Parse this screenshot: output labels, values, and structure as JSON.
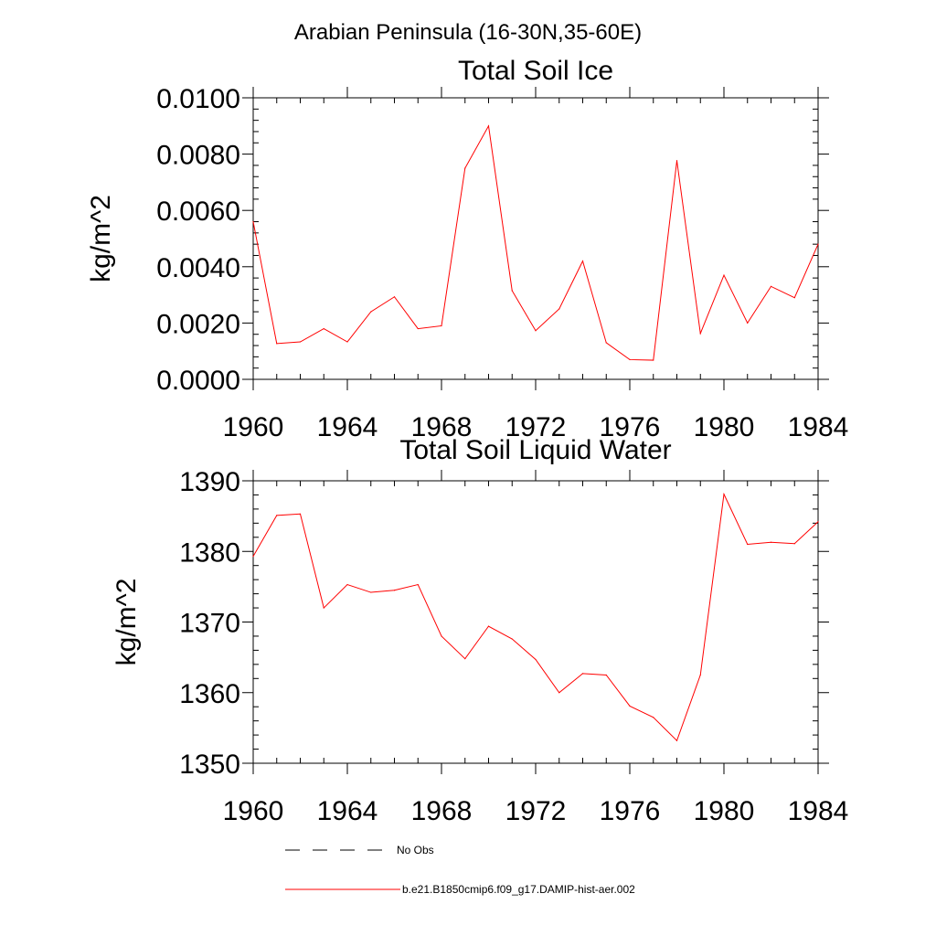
{
  "figure": {
    "title": "Arabian Peninsula (16-30N,35-60E)"
  },
  "legend": {
    "entries": [
      {
        "label": "No Obs",
        "style": "dashed",
        "color": "#000000"
      },
      {
        "label": "b.e21.B1850cmip6.f09_g17.DAMIP-hist-aer.002",
        "style": "solid",
        "color": "#ff0000"
      }
    ]
  },
  "chart_data": [
    {
      "type": "line",
      "title": "Total Soil Ice",
      "xlabel": "",
      "ylabel": "kg/m^2",
      "xlim": [
        1960,
        1984
      ],
      "ylim": [
        0.0,
        0.01
      ],
      "xticks": [
        1960,
        1964,
        1968,
        1972,
        1976,
        1980,
        1984
      ],
      "xtick_labels": [
        "1960",
        "1964",
        "1968",
        "1972",
        "1976",
        "1980",
        "1984"
      ],
      "yticks": [
        0.0,
        0.002,
        0.004,
        0.006,
        0.008,
        0.01
      ],
      "ytick_labels": [
        "0.0000",
        "0.0020",
        "0.0040",
        "0.0060",
        "0.0080",
        "0.0100"
      ],
      "grid": false,
      "x": [
        1960,
        1961,
        1962,
        1963,
        1964,
        1965,
        1966,
        1967,
        1968,
        1969,
        1970,
        1971,
        1972,
        1973,
        1974,
        1975,
        1976,
        1977,
        1978,
        1979,
        1980,
        1981,
        1982,
        1983,
        1984
      ],
      "series": [
        {
          "color": "#ff0000",
          "values": [
            0.0056,
            0.00127,
            0.00133,
            0.0018,
            0.00133,
            0.0024,
            0.00293,
            0.0018,
            0.0019,
            0.0075,
            0.009,
            0.00315,
            0.00173,
            0.0025,
            0.0042,
            0.0013,
            0.0007,
            0.00068,
            0.00777,
            0.00163,
            0.0037,
            0.002,
            0.0033,
            0.0029,
            0.0048
          ]
        }
      ]
    },
    {
      "type": "line",
      "title": "Total Soil Liquid Water",
      "xlabel": "",
      "ylabel": "kg/m^2",
      "xlim": [
        1960,
        1984
      ],
      "ylim": [
        1350,
        1390
      ],
      "xticks": [
        1960,
        1964,
        1968,
        1972,
        1976,
        1980,
        1984
      ],
      "xtick_labels": [
        "1960",
        "1964",
        "1968",
        "1972",
        "1976",
        "1980",
        "1984"
      ],
      "yticks": [
        1350,
        1360,
        1370,
        1380,
        1390
      ],
      "ytick_labels": [
        "1350",
        "1360",
        "1370",
        "1380",
        "1390"
      ],
      "grid": false,
      "x": [
        1960,
        1961,
        1962,
        1963,
        1964,
        1965,
        1966,
        1967,
        1968,
        1969,
        1970,
        1971,
        1972,
        1973,
        1974,
        1975,
        1976,
        1977,
        1978,
        1979,
        1980,
        1981,
        1982,
        1983,
        1984
      ],
      "series": [
        {
          "color": "#ff0000",
          "values": [
            1379.3,
            1385.1,
            1385.3,
            1372.0,
            1375.3,
            1374.2,
            1374.5,
            1375.3,
            1368.0,
            1364.8,
            1369.4,
            1367.6,
            1364.7,
            1360.0,
            1362.7,
            1362.5,
            1358.1,
            1356.5,
            1353.2,
            1362.5,
            1388.1,
            1381.0,
            1381.3,
            1381.1,
            1384.2
          ]
        }
      ]
    }
  ]
}
